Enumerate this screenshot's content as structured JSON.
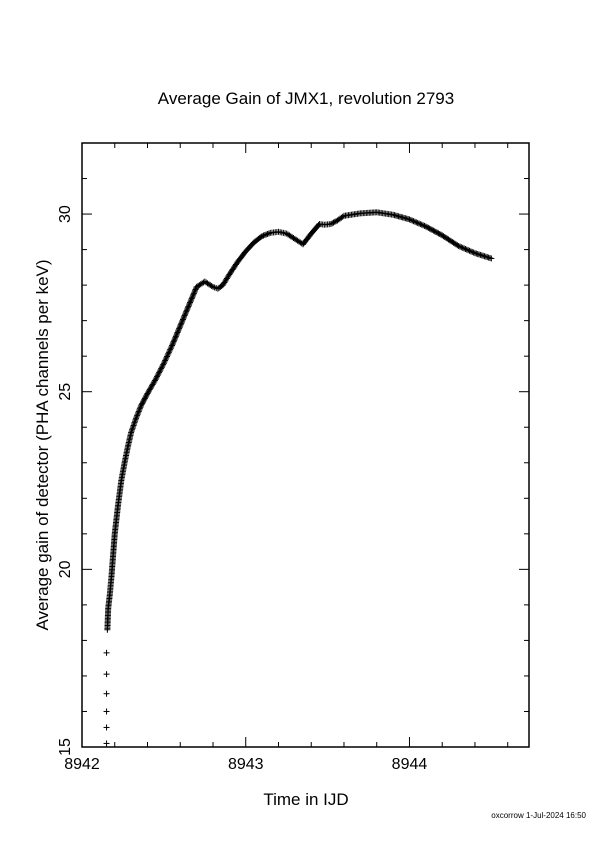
{
  "chart_data": {
    "type": "scatter",
    "title": "Average Gain of JMX1, revolution 2793",
    "xlabel": "Time in IJD",
    "ylabel": "Average gain of detector (PHA channels per keV)",
    "xlim": [
      8942.0,
      8944.73
    ],
    "ylim": [
      15,
      32
    ],
    "xticks": [
      8942,
      8943,
      8944
    ],
    "xtick_labels": [
      "8942",
      "8943",
      "8944"
    ],
    "yticks": [
      15,
      20,
      25,
      30
    ],
    "ytick_labels": [
      "15",
      "20",
      "25",
      "30"
    ],
    "grid": false,
    "legend": "none",
    "marker": "plus",
    "series": [
      {
        "x": [
          8942.15,
          8942.15,
          8942.15,
          8942.15,
          8942.15,
          8942.15,
          8942.155,
          8942.16,
          8942.17,
          8942.18,
          8942.19,
          8942.2,
          8942.22,
          8942.24,
          8942.26,
          8942.28,
          8942.3,
          8942.33,
          8942.36,
          8942.4,
          8942.45,
          8942.5,
          8942.55,
          8942.6,
          8942.65,
          8942.7,
          8942.75,
          8942.8,
          8942.83,
          8942.86,
          8942.9,
          8942.95,
          8943.0,
          8943.05,
          8943.1,
          8943.15,
          8943.2,
          8943.25,
          8943.3,
          8943.35,
          8943.4,
          8943.45,
          8943.48,
          8943.52,
          8943.56,
          8943.6,
          8943.7,
          8943.8,
          8943.9,
          8944.0,
          8944.1,
          8944.2,
          8944.3,
          8944.4,
          8944.5
        ],
        "y": [
          15.1,
          15.55,
          16.0,
          16.5,
          17.05,
          17.65,
          18.3,
          18.9,
          19.3,
          19.8,
          20.4,
          21.0,
          21.8,
          22.5,
          23.0,
          23.45,
          23.85,
          24.25,
          24.6,
          24.95,
          25.35,
          25.8,
          26.3,
          26.85,
          27.4,
          27.95,
          28.1,
          27.95,
          27.9,
          28.0,
          28.3,
          28.65,
          28.95,
          29.2,
          29.38,
          29.47,
          29.5,
          29.45,
          29.3,
          29.15,
          29.45,
          29.72,
          29.7,
          29.72,
          29.82,
          29.95,
          30.02,
          30.05,
          29.98,
          29.85,
          29.65,
          29.4,
          29.1,
          28.9,
          28.75
        ]
      }
    ]
  },
  "footer": {
    "stamp": "oxcorrow  1-Jul-2024 16:50"
  }
}
